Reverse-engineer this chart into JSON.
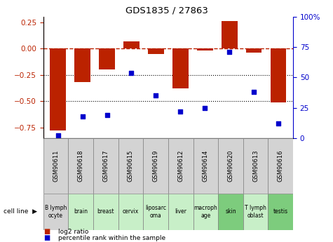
{
  "title": "GDS1835 / 27863",
  "samples": [
    "GSM90611",
    "GSM90618",
    "GSM90617",
    "GSM90615",
    "GSM90619",
    "GSM90612",
    "GSM90614",
    "GSM90620",
    "GSM90613",
    "GSM90616"
  ],
  "cell_lines": [
    "B lymph\nocyte",
    "brain",
    "breast",
    "cervix",
    "liposarc\noma",
    "liver",
    "macroph\nage",
    "skin",
    "T lymph\noblast",
    "testis"
  ],
  "cell_bg": [
    "#d3d3d3",
    "#c8efc8",
    "#c8efc8",
    "#c8efc8",
    "#c8efc8",
    "#c8efc8",
    "#c8efc8",
    "#7dcc7d",
    "#c8efc8",
    "#7dcc7d"
  ],
  "gsm_bg": "#d3d3d3",
  "log2_ratio": [
    -0.78,
    -0.32,
    -0.2,
    0.07,
    -0.05,
    -0.38,
    -0.02,
    0.26,
    -0.04,
    -0.51
  ],
  "percentile_rank": [
    2,
    18,
    19,
    54,
    35,
    22,
    25,
    71,
    38,
    12
  ],
  "bar_color": "#bb2200",
  "dot_color": "#0000cc",
  "ylim_left": [
    -0.85,
    0.3
  ],
  "ylim_right": [
    0,
    100
  ],
  "yticks_left": [
    -0.75,
    -0.5,
    -0.25,
    0,
    0.25
  ],
  "yticks_right": [
    0,
    25,
    50,
    75,
    100
  ],
  "dotted_lines": [
    -0.25,
    -0.5
  ],
  "bar_width": 0.65
}
